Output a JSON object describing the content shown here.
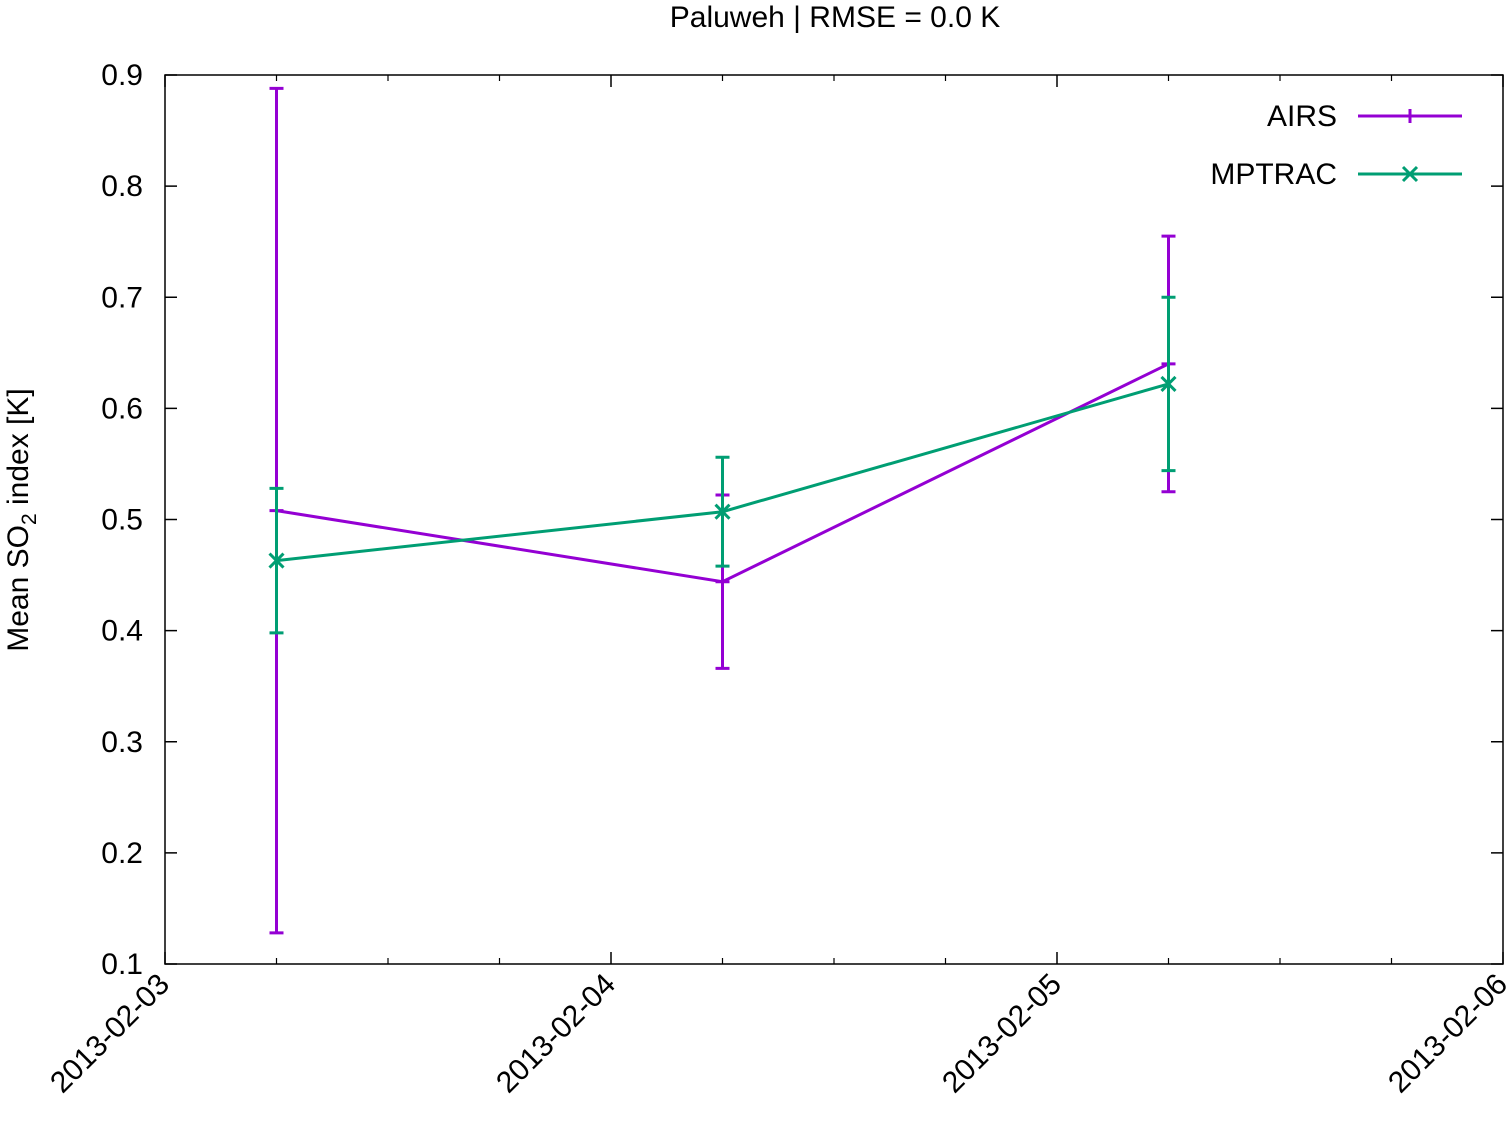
{
  "chart_data": {
    "type": "line",
    "title": "Paluweh | RMSE = 0.0 K",
    "ylabel": {
      "prefix": "Mean SO",
      "subscript": "2",
      "suffix": " index [K]"
    },
    "xlabel": "",
    "x_tick_labels": [
      "2013-02-03",
      "2013-02-04",
      "2013-02-05",
      "2013-02-06"
    ],
    "x_ticks": [
      "2013-02-03",
      "2013-02-04",
      "2013-02-05",
      "2013-02-06"
    ],
    "y_tick_labels": [
      "0.1",
      "0.2",
      "0.3",
      "0.4",
      "0.5",
      "0.6",
      "0.7",
      "0.8",
      "0.9"
    ],
    "xlim": [
      "2013-02-03T00:00",
      "2013-02-06T00:00"
    ],
    "ylim": [
      0.1,
      0.9
    ],
    "grid": false,
    "legend_position": "top-right",
    "series": [
      {
        "name": "AIRS",
        "color": "#9400d3",
        "marker": "plus",
        "x": [
          "2013-02-03T06:00",
          "2013-02-04T06:00",
          "2013-02-05T06:00"
        ],
        "y": [
          0.508,
          0.444,
          0.64
        ],
        "err_low": [
          0.128,
          0.366,
          0.525
        ],
        "err_high": [
          0.888,
          0.522,
          0.755
        ]
      },
      {
        "name": "MPTRAC",
        "color": "#009e73",
        "marker": "cross",
        "x": [
          "2013-02-03T06:00",
          "2013-02-04T06:00",
          "2013-02-05T06:00"
        ],
        "y": [
          0.463,
          0.507,
          0.622
        ],
        "err_low": [
          0.398,
          0.458,
          0.544
        ],
        "err_high": [
          0.528,
          0.556,
          0.7
        ]
      }
    ]
  }
}
